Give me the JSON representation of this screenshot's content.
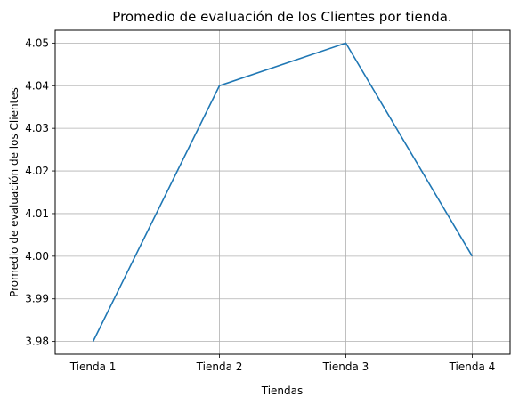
{
  "chart_data": {
    "type": "line",
    "title": "Promedio de evaluación de los Clientes por tienda.",
    "xlabel": "Tiendas",
    "ylabel": "Promedio de evaluación de los Clientes",
    "categories": [
      "Tienda 1",
      "Tienda 2",
      "Tienda 3",
      "Tienda 4"
    ],
    "series": [
      {
        "values": [
          3.98,
          4.04,
          4.05,
          4.0
        ]
      }
    ],
    "ylim": [
      3.977,
      4.053
    ],
    "yticks": [
      3.98,
      3.99,
      4.0,
      4.01,
      4.02,
      4.03,
      4.04,
      4.05
    ],
    "ytick_labels": [
      "3.98",
      "3.99",
      "4.00",
      "4.01",
      "4.02",
      "4.03",
      "4.04",
      "4.05"
    ],
    "grid": true,
    "line_color": "#1f77b4",
    "grid_color": "#b0b0b0"
  }
}
